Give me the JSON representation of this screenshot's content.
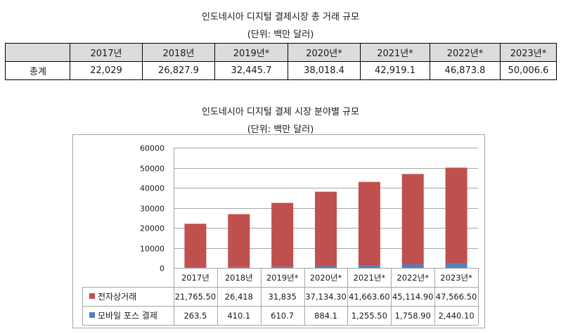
{
  "top_table": {
    "title": "인도네시아 디지털 결제시장 총 거래 규모",
    "unit": "(단위: 백만 달러)",
    "headers": [
      "2017년",
      "2018년",
      "2019년*",
      "2020년*",
      "2021년*",
      "2022년*",
      "2023년*"
    ],
    "row_label": "총계",
    "values": [
      "22,029",
      "26,827.9",
      "32,445.7",
      "38,018.4",
      "42,919.1",
      "46,873.8",
      "50,006.6"
    ]
  },
  "chart_title": "인도네시아 디지털 결제 시장 분야별 규모",
  "chart_unit": "(단위: 백만 달러)",
  "colors": {
    "ecommerce": "#c0504d",
    "mobile_pos": "#4f81bd",
    "header_bg": "#dcdcdc"
  },
  "chart_data": {
    "type": "bar",
    "stacked": true,
    "categories": [
      "2017년",
      "2018년",
      "2019년*",
      "2020년*",
      "2021년*",
      "2022년*",
      "2023년*"
    ],
    "series": [
      {
        "name": "전자상거래",
        "values": [
          21765.5,
          26418,
          31835,
          37134.3,
          41663.6,
          45114.9,
          47566.5
        ],
        "labels": [
          "21,765.50",
          "26,418",
          "31,835",
          "37,134.30",
          "41,663.60",
          "45,114.90",
          "47,566.50"
        ]
      },
      {
        "name": "모바일 포스 결제",
        "values": [
          263.5,
          410.1,
          610.7,
          884.1,
          1255.5,
          1758.9,
          2440.1
        ],
        "labels": [
          "263.5",
          "410.1",
          "610.7",
          "884.1",
          "1,255.50",
          "1,758.90",
          "2,440.10"
        ]
      }
    ],
    "ylim": [
      0,
      60000
    ],
    "yticks": [
      "0",
      "10000",
      "20000",
      "30000",
      "40000",
      "50000",
      "60000"
    ],
    "grid": true,
    "data_table": true
  }
}
